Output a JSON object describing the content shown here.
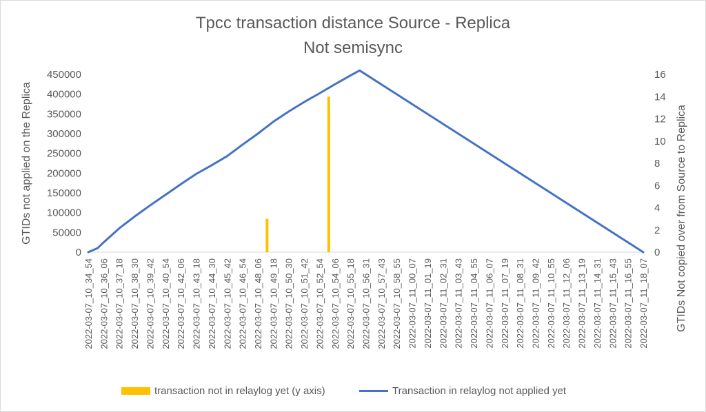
{
  "chart_data": {
    "type": "bar+line",
    "title": [
      "Tpcc transaction distance Source  - Replica",
      "Not semisync"
    ],
    "ylabel": "GTIDs not applied on the Replica",
    "y2label": "GTIDs Not copied over from Source to Replica",
    "ylim": [
      0,
      450000
    ],
    "yticks": [
      0,
      50000,
      100000,
      150000,
      200000,
      250000,
      300000,
      350000,
      400000,
      450000
    ],
    "y2lim": [
      0,
      16
    ],
    "y2ticks": [
      0,
      2,
      4,
      6,
      8,
      10,
      12,
      14,
      16
    ],
    "categories": [
      "2022-03-07_10_34_54",
      "2022-03-07_10_36_06",
      "2022-03-07_10_37_18",
      "2022-03-07_10_38_30",
      "2022-03-07_10_39_42",
      "2022-03-07_10_40_54",
      "2022-03-07_10_42_06",
      "2022-03-07_10_43_18",
      "2022-03-07_10_44_30",
      "2022-03-07_10_45_42",
      "2022-03-07_10_46_54",
      "2022-03-07_10_48_06",
      "2022-03-07_10_49_18",
      "2022-03-07_10_50_30",
      "2022-03-07_10_51_42",
      "2022-03-07_10_52_54",
      "2022-03-07_10_54_06",
      "2022-03-07_10_55_18",
      "2022-03-07_10_56_31",
      "2022-03-07_10_57_43",
      "2022-03-07_10_58_55",
      "2022-03-07_11_00_07",
      "2022-03-07_11_01_19",
      "2022-03-07_11_02_31",
      "2022-03-07_11_03_43",
      "2022-03-07_11_04_55",
      "2022-03-07_11_06_07",
      "2022-03-07_11_07_19",
      "2022-03-07_11_08_31",
      "2022-03-07_11_09_42",
      "2022-03-07_11_10_55",
      "2022-03-07_11_12_06",
      "2022-03-07_11_13_19",
      "2022-03-07_11_14_31",
      "2022-03-07_11_15_43",
      "2022-03-07_11_16_55",
      "2022-03-07_11_18_07"
    ],
    "series": [
      {
        "name": "transaction not in relaylog yet (y axis)",
        "type": "bar",
        "axis": "y2",
        "color": "#ffc000",
        "points": [
          {
            "x": "2022-03-07_10_48_06",
            "value": 3,
            "offset": 0.6
          },
          {
            "x": "2022-03-07_10_52_54",
            "value": 14,
            "offset": 0.6
          }
        ]
      },
      {
        "name": "Transaction in relaylog not applied yet",
        "type": "line",
        "axis": "y",
        "color": "#4472c4",
        "points": [
          {
            "x": 0,
            "y": 0
          },
          {
            "x": 0.6,
            "y": 10000
          },
          {
            "x": 1.0,
            "y": 25000
          },
          {
            "x": 2.0,
            "y": 60000
          },
          {
            "x": 3.0,
            "y": 90000
          },
          {
            "x": 4.0,
            "y": 118000
          },
          {
            "x": 5.0,
            "y": 145000
          },
          {
            "x": 6.0,
            "y": 172000
          },
          {
            "x": 7.0,
            "y": 198000
          },
          {
            "x": 8.0,
            "y": 220000
          },
          {
            "x": 9.0,
            "y": 243000
          },
          {
            "x": 10.0,
            "y": 272000
          },
          {
            "x": 11.0,
            "y": 300000
          },
          {
            "x": 12.0,
            "y": 330000
          },
          {
            "x": 13.0,
            "y": 356000
          },
          {
            "x": 14.0,
            "y": 380000
          },
          {
            "x": 15.0,
            "y": 402000
          },
          {
            "x": 16.0,
            "y": 425000
          },
          {
            "x": 17.0,
            "y": 447000
          },
          {
            "x": 17.6,
            "y": 460000
          },
          {
            "x": 36.0,
            "y": 0
          }
        ]
      }
    ],
    "legend_position": "bottom",
    "grid": false
  }
}
